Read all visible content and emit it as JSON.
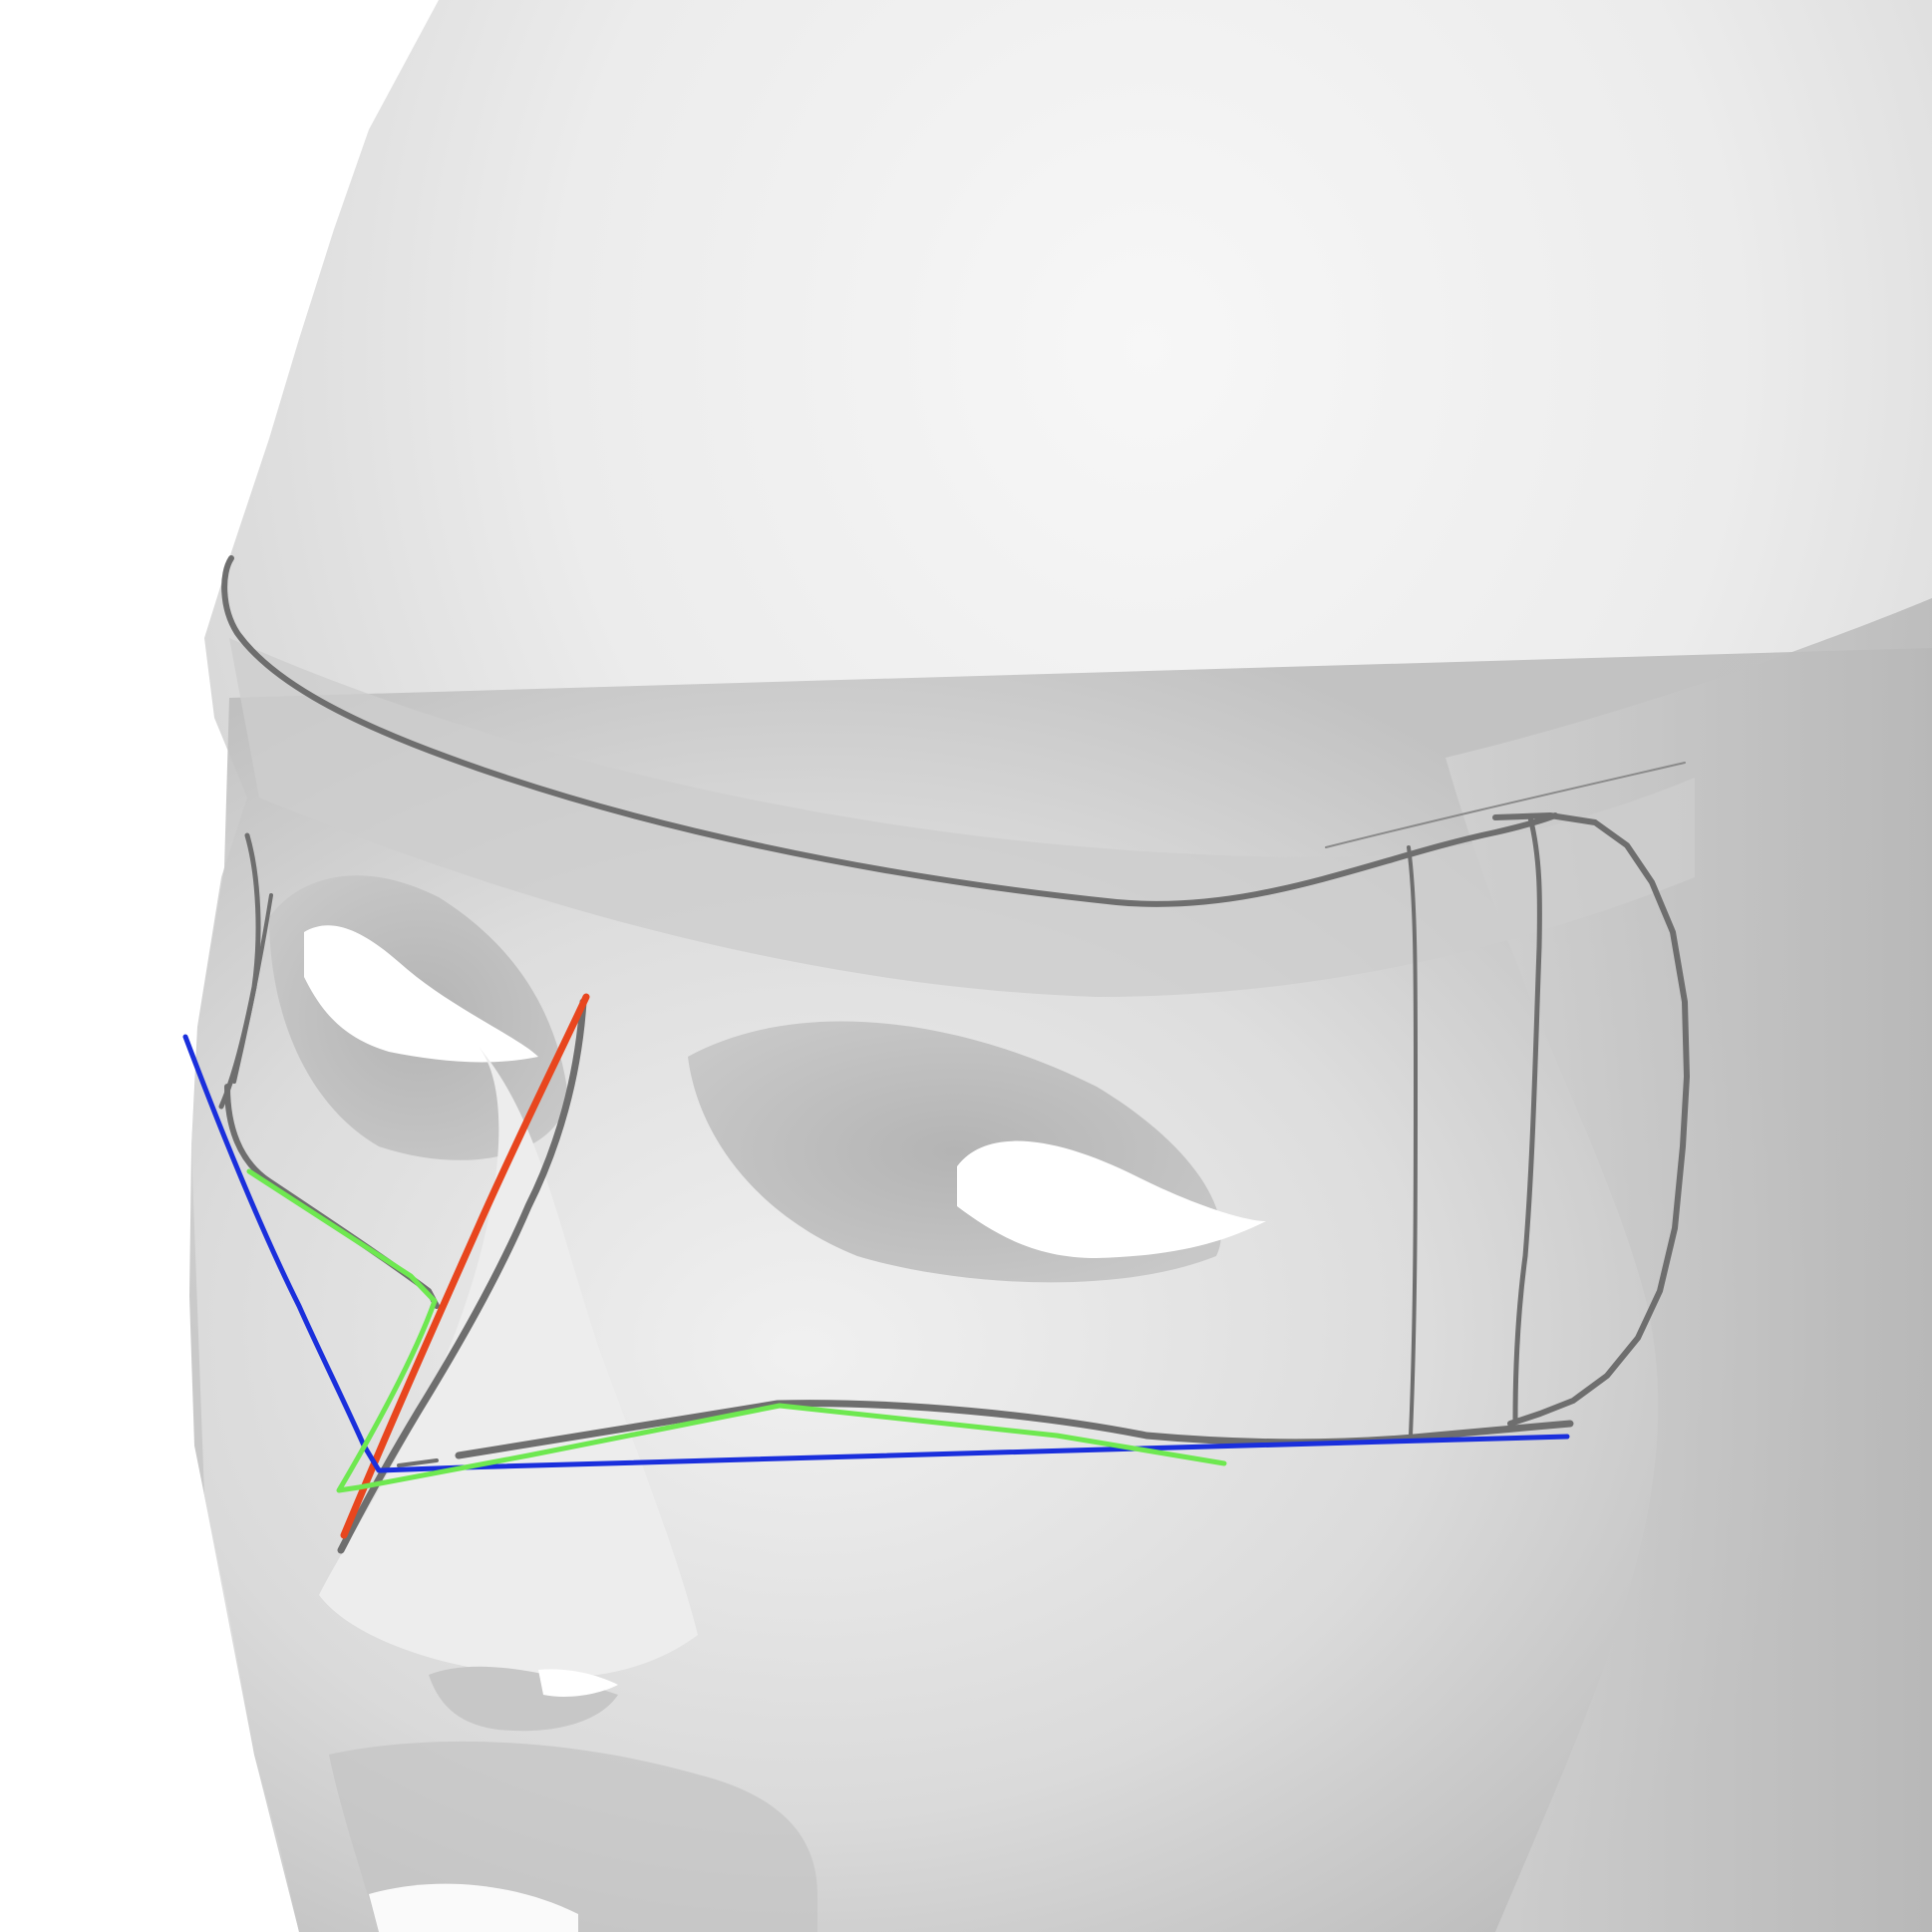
{
  "scene": {
    "background_color": "#ffffff",
    "head_color": "#d6d6d6",
    "head_highlight_color": "#f4f4f4",
    "shadow_color": "#b9b9b9",
    "outline_color": "#6e6e6e",
    "axis_colors": {
      "red": "#e8461e",
      "green": "#6ee850",
      "blue": "#1a2fdc"
    },
    "elements": [
      "head-mesh",
      "headband-outline",
      "side-panel-outline",
      "nose-bridge-frame",
      "red-axis-line",
      "green-axis-line",
      "blue-axis-line"
    ]
  }
}
